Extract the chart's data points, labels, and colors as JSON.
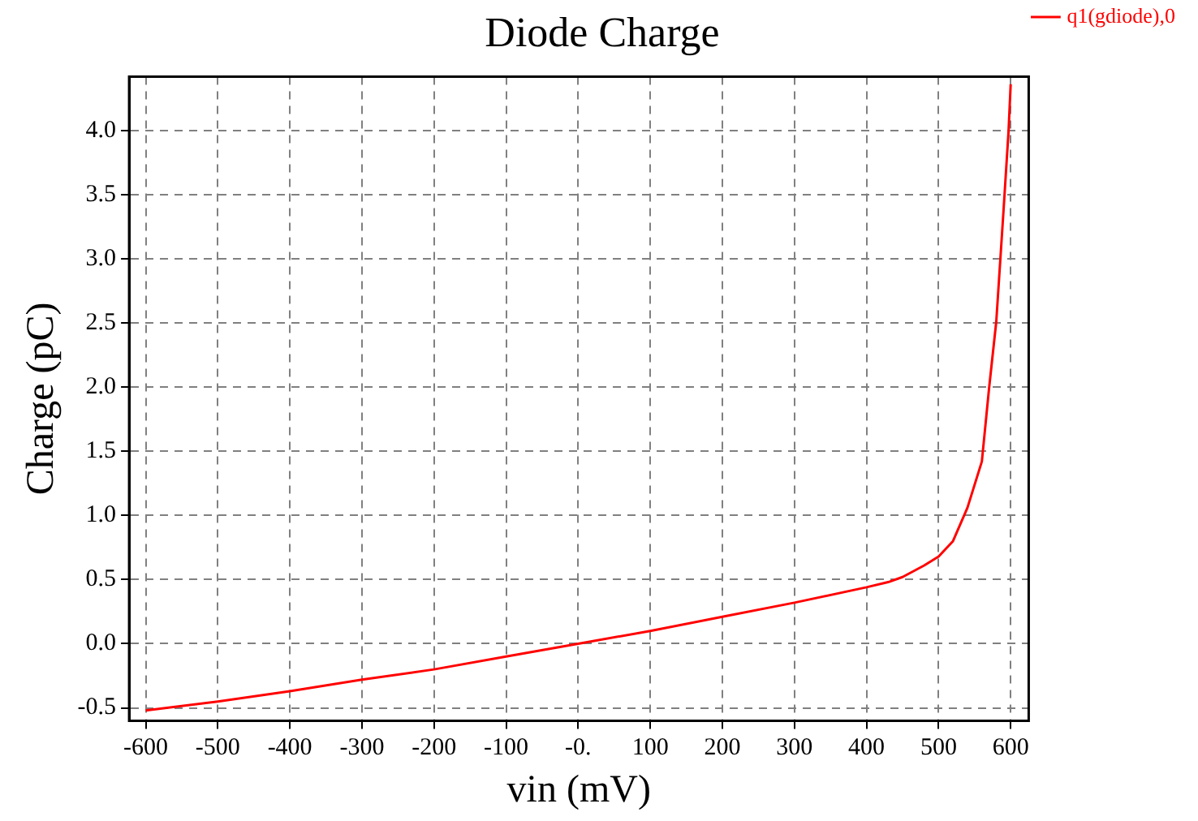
{
  "chart_data": {
    "type": "line",
    "title": "Diode Charge",
    "xlabel": "vin (mV)",
    "ylabel": "Charge (pC)",
    "x": [
      -600,
      -500,
      -400,
      -300,
      -200,
      -100,
      0,
      100,
      200,
      300,
      400,
      430,
      450,
      480,
      500,
      520,
      540,
      560,
      570,
      580,
      590,
      597,
      600
    ],
    "series": [
      {
        "name": "q1(gdiode),0",
        "color": "#ff0000",
        "values": [
          -0.52,
          -0.45,
          -0.37,
          -0.28,
          -0.2,
          -0.1,
          0,
          0.1,
          0.21,
          0.32,
          0.44,
          0.48,
          0.52,
          0.61,
          0.68,
          0.8,
          1.06,
          1.42,
          1.99,
          2.51,
          3.37,
          3.99,
          4.36
        ]
      }
    ],
    "xlim": [
      -623,
      625
    ],
    "ylim": [
      -0.6,
      4.42
    ],
    "xticks": [
      -600,
      -500,
      -400,
      -300,
      -200,
      -100,
      {
        "value": 0,
        "label": "-0."
      },
      100,
      200,
      300,
      400,
      500,
      600
    ],
    "yticks": [
      -0.5,
      {
        "value": 0,
        "label": "0.0"
      },
      0.5,
      {
        "value": 1,
        "label": "1.0"
      },
      1.5,
      {
        "value": 2,
        "label": "2.0"
      },
      2.5,
      {
        "value": 3,
        "label": "3.0"
      },
      3.5,
      {
        "value": 4,
        "label": "4.0"
      }
    ],
    "grid": true,
    "legend": "top right",
    "marker": "none",
    "line_style": "solid"
  }
}
